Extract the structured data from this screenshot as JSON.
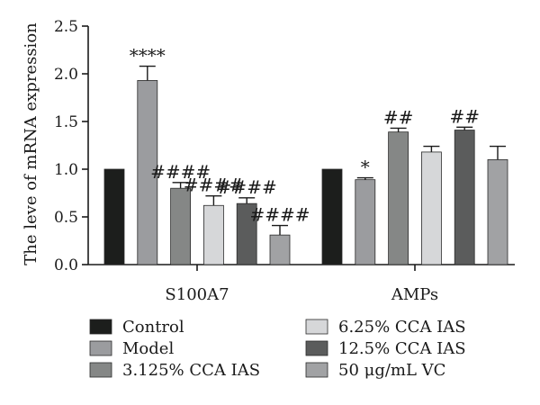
{
  "chart_data": {
    "type": "bar",
    "title": "",
    "xlabel": "",
    "ylabel": "The leve of mRNA expression",
    "ylim": [
      0,
      2.5
    ],
    "yticks": [
      0.0,
      0.5,
      1.0,
      1.5,
      2.0,
      2.5
    ],
    "ytick_labels": [
      "0.0",
      "0.5",
      "1.0",
      "1.5",
      "2.0",
      "2.5"
    ],
    "categories": [
      "S100A7",
      "AMPs"
    ],
    "grid": false,
    "legend_position": "bottom",
    "series": [
      {
        "name": "Control",
        "color": "#1c1e1c",
        "values": [
          1.0,
          1.0
        ],
        "errors": [
          0,
          0
        ],
        "significance": [
          "",
          ""
        ]
      },
      {
        "name": "Model",
        "color": "#9b9c9f",
        "values": [
          1.93,
          0.89
        ],
        "errors": [
          0.15,
          0.02
        ],
        "significance": [
          "****",
          "*"
        ]
      },
      {
        "name": "3.125% CCA IAS",
        "color": "#858786",
        "values": [
          0.8,
          1.39
        ],
        "errors": [
          0.06,
          0.04
        ],
        "significance": [
          "####",
          "##"
        ]
      },
      {
        "name": "6.25% CCA IAS",
        "color": "#d6d7d9",
        "values": [
          0.62,
          1.18
        ],
        "errors": [
          0.1,
          0.06
        ],
        "significance": [
          "####",
          ""
        ]
      },
      {
        "name": "12.5% CCA IAS",
        "color": "#5b5c5c",
        "values": [
          0.64,
          1.41
        ],
        "errors": [
          0.06,
          0.03
        ],
        "significance": [
          "####",
          "##"
        ]
      },
      {
        "name": "50 μg/mL VC",
        "color": "#a1a2a4",
        "values": [
          0.31,
          1.1
        ],
        "errors": [
          0.1,
          0.14
        ],
        "significance": [
          "####",
          ""
        ]
      }
    ]
  }
}
